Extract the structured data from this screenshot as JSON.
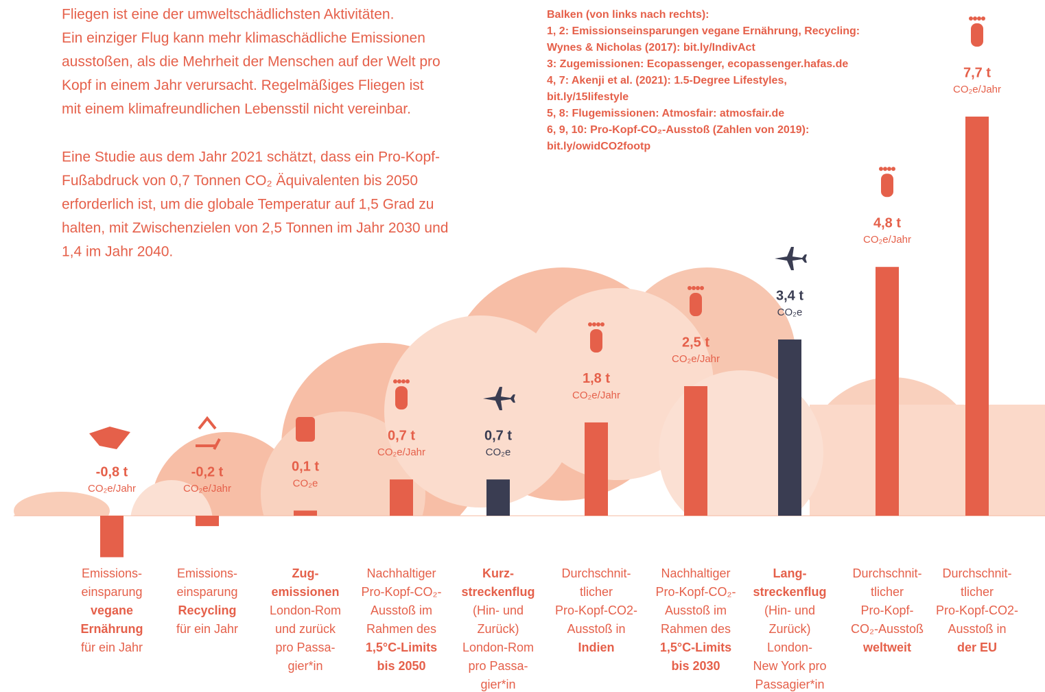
{
  "intro": {
    "paragraphs": [
      [
        "Fliegen ist eine der umweltschädlichsten Aktivitäten.",
        "Ein einziger Flug kann mehr klimaschädliche Emissionen",
        "ausstoßen, als die Mehrheit der Menschen auf der Welt pro",
        "Kopf in einem Jahr verursacht. Regelmäßiges Fliegen ist",
        "mit einem klimafreundlichen Lebensstil nicht vereinbar."
      ],
      [
        "Eine Studie aus dem Jahr 2021 schätzt, dass ein Pro-Kopf-",
        "Fußabdruck von 0,7 Tonnen CO₂ Äquivalenten bis 2050",
        "erforderlich ist, um die globale Temperatur auf 1,5 Grad zu",
        "halten, mit Zwischenzielen von 2,5 Tonnen im Jahr 2030 und",
        "1,4 im Jahr 2040."
      ]
    ]
  },
  "sources": [
    "Balken (von links nach rechts):",
    "1, 2: Emissionseinsparungen vegane Ernährung, Recycling:",
    "Wynes & Nicholas (2017): bit.ly/IndivAct",
    "3: Zugemissionen: Ecopassenger, ecopassenger.hafas.de",
    "4, 7: Akenji et al. (2021): 1.5-Degree Lifestyles,",
    "bit.ly/15lifestyle",
    "5, 8: Flugemissionen: Atmosfair: atmosfair.de",
    "6, 9, 10: Pro-Kopf-CO₂-Ausstoß (Zahlen von 2019):",
    "bit.ly/owidCO2footp"
  ],
  "chart_data": {
    "type": "bar",
    "categories": [
      [
        "Emissions-",
        "einsparung",
        "vegane",
        "Ernährung",
        "für ein Jahr"
      ],
      [
        "Emissions-",
        "einsparung",
        "Recycling",
        "für ein Jahr"
      ],
      [
        "Zug-",
        "emissionen",
        "London-Rom",
        "und zurück",
        "pro Passa-",
        "gier*in"
      ],
      [
        "Nachhaltiger",
        "Pro-Kopf-CO₂-",
        "Ausstoß im",
        "Rahmen des",
        "1,5°C-Limits",
        "bis 2050"
      ],
      [
        "Kurz-",
        "streckenflug",
        "(Hin- und",
        "Zurück)",
        "London-Rom",
        "pro Passa-",
        "gier*in"
      ],
      [
        "Durchschnit-",
        "tlicher",
        "Pro-Kopf-CO2-",
        "Ausstoß in",
        "Indien"
      ],
      [
        "Nachhaltiger",
        "Pro-Kopf-CO₂-",
        "Ausstoß im",
        "Rahmen des",
        "1,5°C-Limits",
        "bis 2030"
      ],
      [
        "Lang-",
        "streckenflug",
        "(Hin- und",
        "Zurück)",
        "London-",
        "New York pro",
        "Passagier*in"
      ],
      [
        "Durchschnit-",
        "tlicher",
        "Pro-Kopf-",
        "CO₂-Ausstoß",
        "weltweit"
      ],
      [
        "Durchschnit-",
        "tlicher",
        "Pro-Kopf-CO2-",
        "Ausstoß in",
        "der EU"
      ]
    ],
    "category_bold": [
      [
        2,
        3
      ],
      [
        2
      ],
      [
        0,
        1
      ],
      [
        4,
        5
      ],
      [
        0,
        1
      ],
      [
        4
      ],
      [
        4,
        5
      ],
      [
        0,
        1
      ],
      [
        4
      ],
      [
        4
      ]
    ],
    "values": [
      -0.8,
      -0.2,
      0.1,
      0.7,
      0.7,
      1.8,
      2.5,
      3.4,
      4.8,
      7.7
    ],
    "value_labels": [
      "-0,8 t",
      "-0,2 t",
      "0,1 t",
      "0,7 t",
      "0,7 t",
      "1,8 t",
      "2,5 t",
      "3,4 t",
      "4,8 t",
      "7,7 t"
    ],
    "units": [
      "CO₂e/Jahr",
      "CO₂e/Jahr",
      "CO₂e",
      "CO₂e/Jahr",
      "CO₂e",
      "CO₂e/Jahr",
      "CO₂e/Jahr",
      "CO₂e",
      "CO₂e/Jahr",
      "CO₂e/Jahr"
    ],
    "colors": [
      "#e5604a",
      "#e5604a",
      "#e5604a",
      "#e5604a",
      "#3a3d52",
      "#e5604a",
      "#e5604a",
      "#3a3d52",
      "#e5604a",
      "#e5604a"
    ]
  }
}
